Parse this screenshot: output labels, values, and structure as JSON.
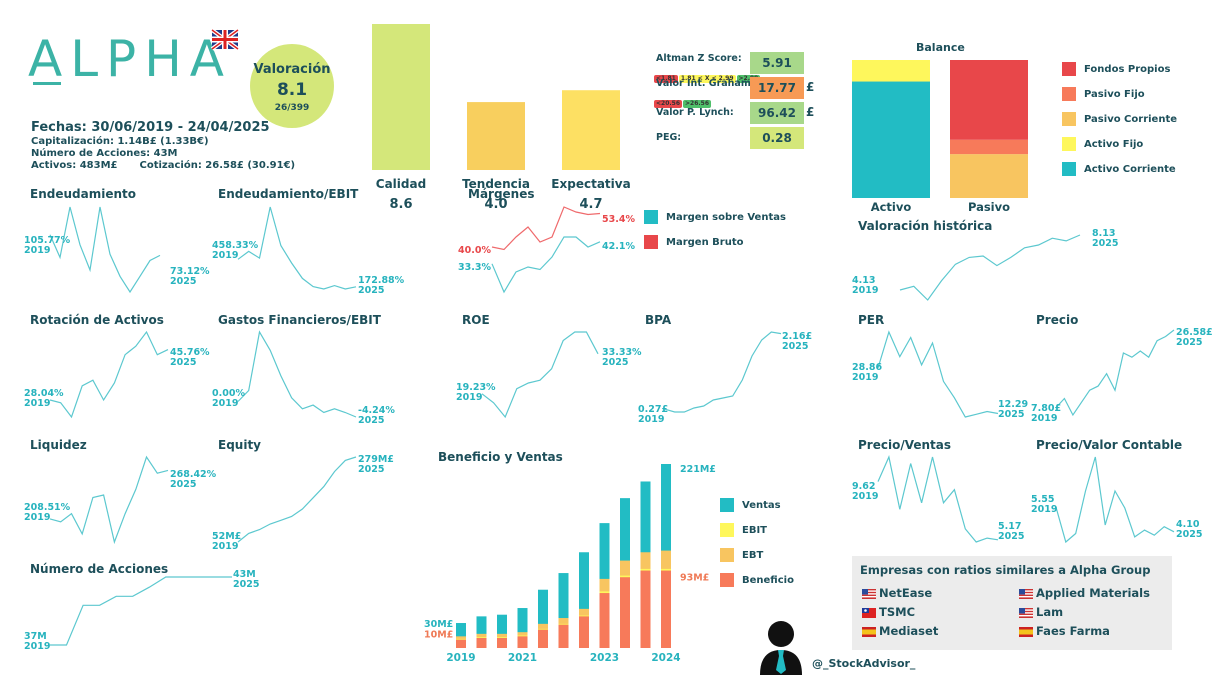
{
  "header": {
    "logo": "ALPHA",
    "flag_icon": "uk-flag-icon",
    "valoracion_label": "Valoración",
    "valoracion_value": "8.1",
    "valoracion_rank": "26/399",
    "fechas": "Fechas: 30/06/2019 - 24/04/2025",
    "capitalizacion": "Capitalización: 1.14B£ (1.33B€)",
    "num_acciones": "Número de Acciones: 43M",
    "activos": "Activos: 483M£",
    "cotizacion": "Cotización: 26.58£ (30.91€)"
  },
  "colors": {
    "teal": "#27b3be",
    "red": "#e8474a",
    "orange": "#ef7a56",
    "yellow_orange": "#f8c560",
    "yellow": "#fef75c",
    "lime": "#d4e77a",
    "dark": "#1d4f5a"
  },
  "scores": [
    {
      "label": "Altman Z Score:",
      "value": "5.91",
      "color": "#a8d88a",
      "currency": "",
      "ranges": [
        "<1.81",
        "1.81 < X < 2.99",
        ">2.99"
      ]
    },
    {
      "label": "Valor Int. Graham:",
      "value": "17.77",
      "color": "#f79a55",
      "currency": "£",
      "ranges": [
        "<20.56",
        ">26.56"
      ]
    },
    {
      "label": "Valor P. Lynch:",
      "value": "96.42",
      "color": "#a8d88a",
      "currency": "£",
      "ranges": []
    },
    {
      "label": "PEG:",
      "value": "0.28",
      "color": "#d4e77a",
      "currency": "",
      "ranges": []
    }
  ],
  "footer": {
    "handle": "@_StockAdvisor_",
    "avatar_icon": "user-silhouette-icon"
  },
  "similar": {
    "title": "Empresas con ratios similares a Alpha Group",
    "companies": [
      {
        "name": "NetEase",
        "flag": "us-flag-icon"
      },
      {
        "name": "Applied Materials",
        "flag": "us-flag-icon"
      },
      {
        "name": "TSMC",
        "flag": "tw-flag-icon"
      },
      {
        "name": "Lam",
        "flag": "us-flag-icon"
      },
      {
        "name": "Mediaset",
        "flag": "es-flag-icon"
      },
      {
        "name": "Faes Farma",
        "flag": "es-flag-icon"
      }
    ]
  },
  "chart_data": [
    {
      "id": "quality",
      "type": "bar",
      "categories": [
        "Calidad",
        "Tendencia",
        "Expectativa"
      ],
      "values": [
        8.6,
        4.0,
        4.7
      ],
      "labels": [
        "8.6",
        "4.0",
        "4.7"
      ],
      "colors": [
        "#d4e77a",
        "#f8cf5e",
        "#fde063"
      ],
      "ylim": [
        0,
        10
      ]
    },
    {
      "id": "balance",
      "type": "bar",
      "title": "Balance",
      "categories": [
        "Activo",
        "Pasivo"
      ],
      "series": [
        {
          "name": "Fondos Propios",
          "color": "#e8474a",
          "values": [
            0,
            57.8
          ]
        },
        {
          "name": "Pasivo Fijo",
          "color": "#f77a5a",
          "values": [
            0,
            10.4
          ]
        },
        {
          "name": "Pasivo Corriente",
          "color": "#f8c560",
          "values": [
            0,
            31.8
          ]
        },
        {
          "name": "Activo Fijo",
          "color": "#fef75c",
          "values": [
            15.6,
            0
          ]
        },
        {
          "name": "Activo Corriente",
          "color": "#22bcc4",
          "values": [
            84.4,
            0
          ]
        }
      ],
      "stack_order_bottom_up": [
        "Activo Corriente",
        "Activo Fijo",
        "Pasivo Corriente",
        "Pasivo Fijo",
        "Fondos Propios"
      ],
      "legend": "right"
    },
    {
      "id": "endeudamiento",
      "type": "line",
      "title": "Endeudamiento",
      "start": "105.77%",
      "start_year": "2019",
      "end": "73.12%",
      "end_year": "2025",
      "values": [
        105.8,
        70,
        150,
        90,
        50,
        150,
        75,
        40,
        15,
        40,
        65,
        73.1
      ]
    },
    {
      "id": "endeudamiento_ebit",
      "type": "line",
      "title": "Endeudamiento/EBIT",
      "start": "458.33%",
      "start_year": "2019",
      "end": "172.88%",
      "end_year": "2025",
      "values": [
        458.3,
        540,
        470,
        1000,
        600,
        420,
        260,
        175,
        150,
        185,
        150,
        172.9
      ]
    },
    {
      "id": "margenes",
      "type": "line",
      "title": "Márgenes",
      "series": [
        {
          "name": "Margen sobre Ventas",
          "color": "#27b3be",
          "start": "33.3%",
          "end": "42.1%",
          "values": [
            33.3,
            22,
            30,
            32,
            31,
            36,
            44,
            44,
            40,
            42.1
          ]
        },
        {
          "name": "Margen Bruto",
          "color": "#e8474a",
          "start": "40.0%",
          "end": "53.4%",
          "values": [
            40.0,
            39,
            44,
            48,
            42,
            44,
            56,
            54,
            53,
            53.4
          ]
        }
      ],
      "legend": "right"
    },
    {
      "id": "valoracion_historica",
      "type": "line",
      "title": "Valoración histórica",
      "start": "4.13",
      "start_year": "2019",
      "end": "8.13",
      "end_year": "2025",
      "values": [
        4.13,
        4.4,
        3.4,
        4.8,
        6.0,
        6.5,
        6.6,
        5.9,
        6.5,
        7.2,
        7.4,
        7.9,
        7.7,
        8.13
      ]
    },
    {
      "id": "rotacion_activos",
      "type": "line",
      "title": "Rotación de Activos",
      "start": "28.04%",
      "start_year": "2019",
      "end": "45.76%",
      "end_year": "2025",
      "values": [
        28.0,
        27,
        22,
        33,
        35,
        28,
        34,
        44,
        47,
        52,
        44,
        45.8
      ]
    },
    {
      "id": "gastos_financieros_ebit",
      "type": "line",
      "title": "Gastos Financieros/EBIT",
      "start": "0.00%",
      "start_year": "2019",
      "end": "-4.24%",
      "end_year": "2025",
      "values": [
        0.0,
        3,
        19,
        14,
        7,
        1,
        -2,
        -1,
        -3,
        -2,
        -3,
        -4.24
      ]
    },
    {
      "id": "roe",
      "type": "line",
      "title": "ROE",
      "start": "19.23%",
      "start_year": "2019",
      "end": "33.33%",
      "end_year": "2025",
      "values": [
        19.2,
        16,
        11,
        21,
        23,
        24,
        28,
        38,
        41,
        41,
        33.3
      ]
    },
    {
      "id": "bpa",
      "type": "line",
      "title": "BPA",
      "start": "0.27£",
      "start_year": "2019",
      "end": "2.16£",
      "end_year": "2025",
      "values": [
        0.27,
        0.2,
        0.2,
        0.3,
        0.35,
        0.5,
        0.55,
        0.6,
        1.0,
        1.6,
        2.0,
        2.2,
        2.16
      ]
    },
    {
      "id": "per",
      "type": "line",
      "title": "PER",
      "start": "28.86",
      "start_year": "2019",
      "end": "12.29",
      "end_year": "2025",
      "values": [
        28.86,
        42,
        33,
        40,
        30,
        38,
        24,
        18,
        11,
        12,
        13,
        12.29
      ]
    },
    {
      "id": "precio",
      "type": "line",
      "title": "Precio",
      "start": "7.80£",
      "start_year": "2019",
      "end": "26.58£",
      "end_year": "2025",
      "values": [
        7.8,
        10,
        6,
        9,
        12,
        13,
        16,
        12,
        21,
        20,
        21.5,
        20,
        24,
        25,
        26.58
      ]
    },
    {
      "id": "liquidez",
      "type": "line",
      "title": "Liquidez",
      "start": "208.51%",
      "start_year": "2019",
      "end": "268.42%",
      "end_year": "2025",
      "values": [
        208.5,
        205,
        215,
        190,
        235,
        238,
        180,
        215,
        245,
        285,
        265,
        268.4
      ]
    },
    {
      "id": "equity",
      "type": "line",
      "title": "Equity",
      "start": "52M£",
      "start_year": "2019",
      "end": "279M£",
      "end_year": "2025",
      "values": [
        52,
        75,
        85,
        100,
        110,
        120,
        140,
        170,
        200,
        240,
        270,
        279
      ]
    },
    {
      "id": "precio_ventas",
      "type": "line",
      "title": "Precio/Ventas",
      "start": "9.62",
      "start_year": "2019",
      "end": "5.17",
      "end_year": "2025",
      "values": [
        9.62,
        11.5,
        7.5,
        11,
        8,
        11.5,
        8,
        9,
        6,
        5,
        5.3,
        5.17
      ]
    },
    {
      "id": "precio_valor_contable",
      "type": "line",
      "title": "Precio/Valor Contable",
      "start": "5.55",
      "start_year": "2019",
      "end": "4.10",
      "end_year": "2025",
      "values": [
        5.55,
        3.5,
        4,
        6.5,
        8.5,
        4.5,
        6.5,
        5.5,
        3.8,
        4.2,
        3.9,
        4.4,
        4.1
      ]
    },
    {
      "id": "numero_acciones",
      "type": "line",
      "title": "Número de Acciones",
      "start": "37M",
      "start_year": "2019",
      "end": "43M",
      "end_year": "2025",
      "values": [
        37,
        37,
        40.5,
        40.5,
        41.3,
        41.3,
        42.1,
        43,
        43,
        43,
        43,
        43
      ]
    },
    {
      "id": "beneficio_ventas",
      "type": "bar",
      "title": "Beneficio y Ventas",
      "categories": [
        "2019",
        "",
        "",
        "2021",
        "",
        "",
        "",
        "2023",
        "",
        "",
        "2024"
      ],
      "x_tick_labels": [
        "2019",
        "2021",
        "2023",
        "2024"
      ],
      "series": [
        {
          "name": "Ventas",
          "color": "#22bcc4",
          "values": [
            30,
            38,
            40,
            48,
            70,
            90,
            115,
            150,
            180,
            200,
            221
          ]
        },
        {
          "name": "EBIT",
          "color": "#fef75c",
          "values": [
            1,
            1,
            1,
            1,
            1,
            1,
            1,
            2,
            2,
            2,
            2
          ]
        },
        {
          "name": "EBT",
          "color": "#f8c560",
          "values": [
            3,
            4,
            4,
            4,
            6,
            7,
            8,
            15,
            18,
            20,
            22
          ]
        },
        {
          "name": "Beneficio",
          "color": "#f77a5a",
          "values": [
            10,
            12,
            12,
            14,
            22,
            28,
            38,
            66,
            85,
            93,
            93
          ]
        }
      ],
      "annotations": {
        "ventas_start": "30M£",
        "beneficio_start": "10M£",
        "ventas_end": "221M£",
        "beneficio_end": "93M£"
      },
      "legend": "right"
    }
  ]
}
